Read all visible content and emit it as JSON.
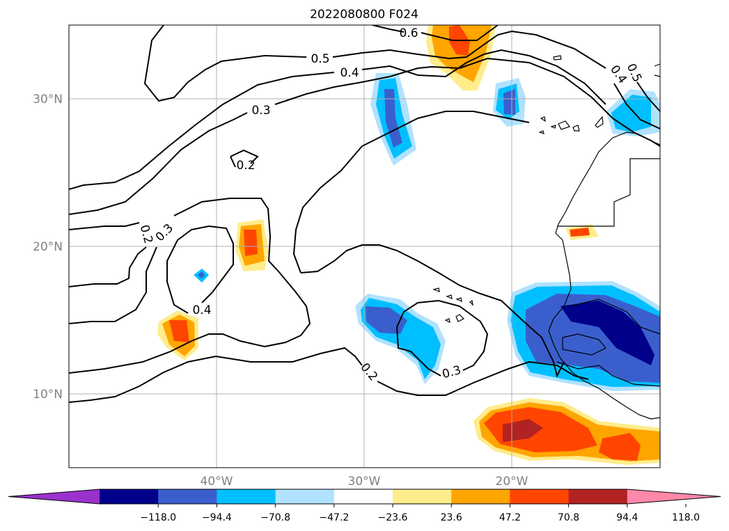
{
  "title": "2022080800 F024",
  "lat_labels": [
    "30°N",
    "20°N",
    "10°N"
  ],
  "lon_labels": [
    "40°W",
    "30°W",
    "20°W"
  ],
  "contour_labels": [
    "0.6",
    "0.5",
    "0.4",
    "0.3",
    "0.2",
    "0.2",
    "0.3",
    "0.4",
    "0.2",
    "0.3",
    "0.5",
    "0.4"
  ],
  "colorbar": {
    "ticks": [
      "−118.0",
      "−94.4",
      "−70.8",
      "−47.2",
      "−23.6",
      "23.6",
      "47.2",
      "70.8",
      "94.4",
      "118.0"
    ],
    "colors": [
      "#9932cc",
      "#00008b",
      "#3a5fcd",
      "#00bfff",
      "#b0e2ff",
      "#ffffff",
      "#ffec8b",
      "#ffa500",
      "#ff4500",
      "#b22222",
      "#ff88aa"
    ]
  },
  "colors": {
    "land": "#000000",
    "grid": "#b0b0b0",
    "contour": "#000000"
  }
}
